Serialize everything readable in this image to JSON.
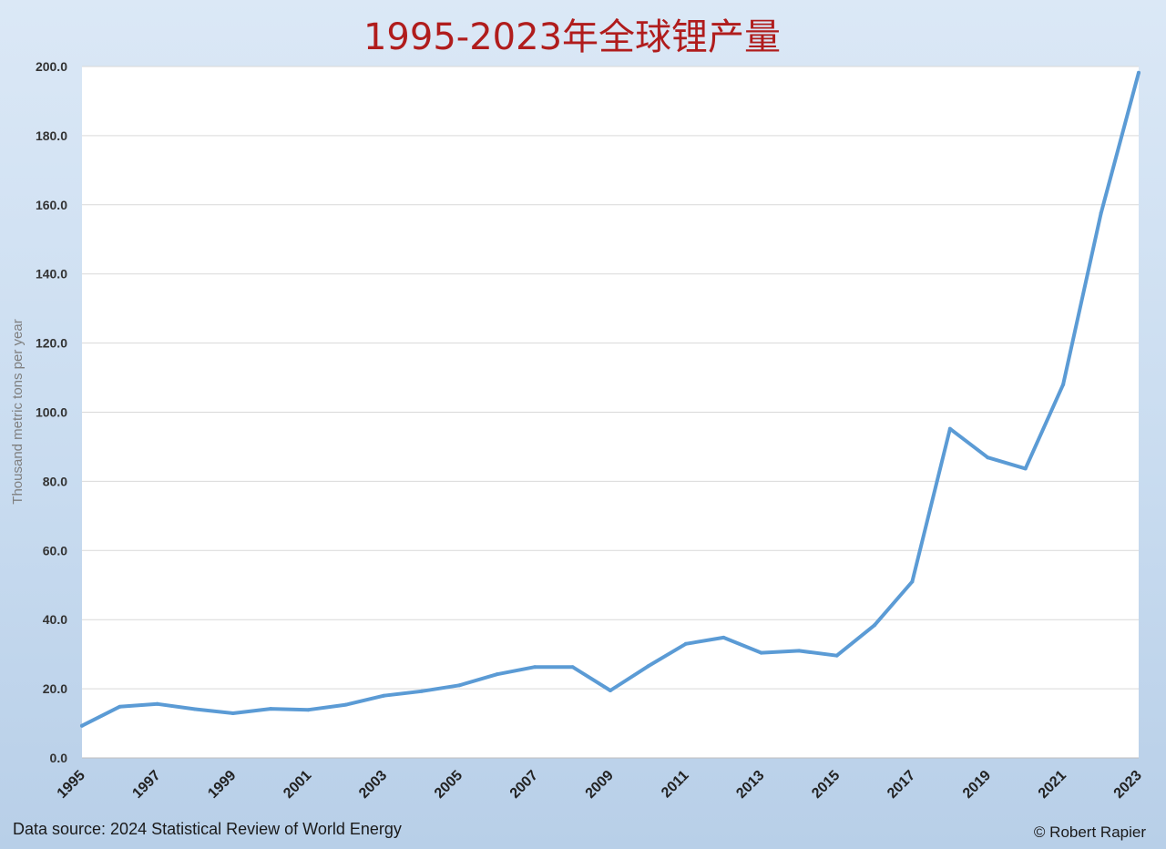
{
  "chart_data": {
    "type": "line",
    "title": "1995-2023年全球锂产量",
    "ylabel": "Thousand metric tons per year",
    "xlabel": "",
    "x": [
      1995,
      1996,
      1997,
      1998,
      1999,
      2000,
      2001,
      2002,
      2003,
      2004,
      2005,
      2006,
      2007,
      2008,
      2009,
      2010,
      2011,
      2012,
      2013,
      2014,
      2015,
      2016,
      2017,
      2018,
      2019,
      2020,
      2021,
      2022,
      2023
    ],
    "series": [
      {
        "values": [
          9.3,
          14.8,
          15.6,
          14.1,
          12.9,
          14.2,
          13.9,
          15.4,
          18.0,
          19.3,
          21.0,
          24.2,
          26.3,
          26.3,
          19.5,
          26.5,
          33.0,
          34.8,
          30.4,
          31.0,
          29.6,
          38.4,
          51.0,
          95.2,
          86.9,
          83.7,
          108.0,
          157.5,
          198.2
        ],
        "color": "#5b9bd5"
      }
    ],
    "ylim": [
      0,
      200
    ],
    "yticks": [
      "0.0",
      "20.0",
      "40.0",
      "60.0",
      "80.0",
      "100.0",
      "120.0",
      "140.0",
      "160.0",
      "180.0",
      "200.0"
    ],
    "xticks": [
      "1995",
      "1997",
      "1999",
      "2001",
      "2003",
      "2005",
      "2007",
      "2009",
      "2011",
      "2013",
      "2015",
      "2017",
      "2019",
      "2021",
      "2023"
    ],
    "grid": true,
    "legend": "none"
  },
  "footer": {
    "source": "Data source: 2024 Statistical Review of World Energy",
    "credit": "© Robert Rapier"
  }
}
